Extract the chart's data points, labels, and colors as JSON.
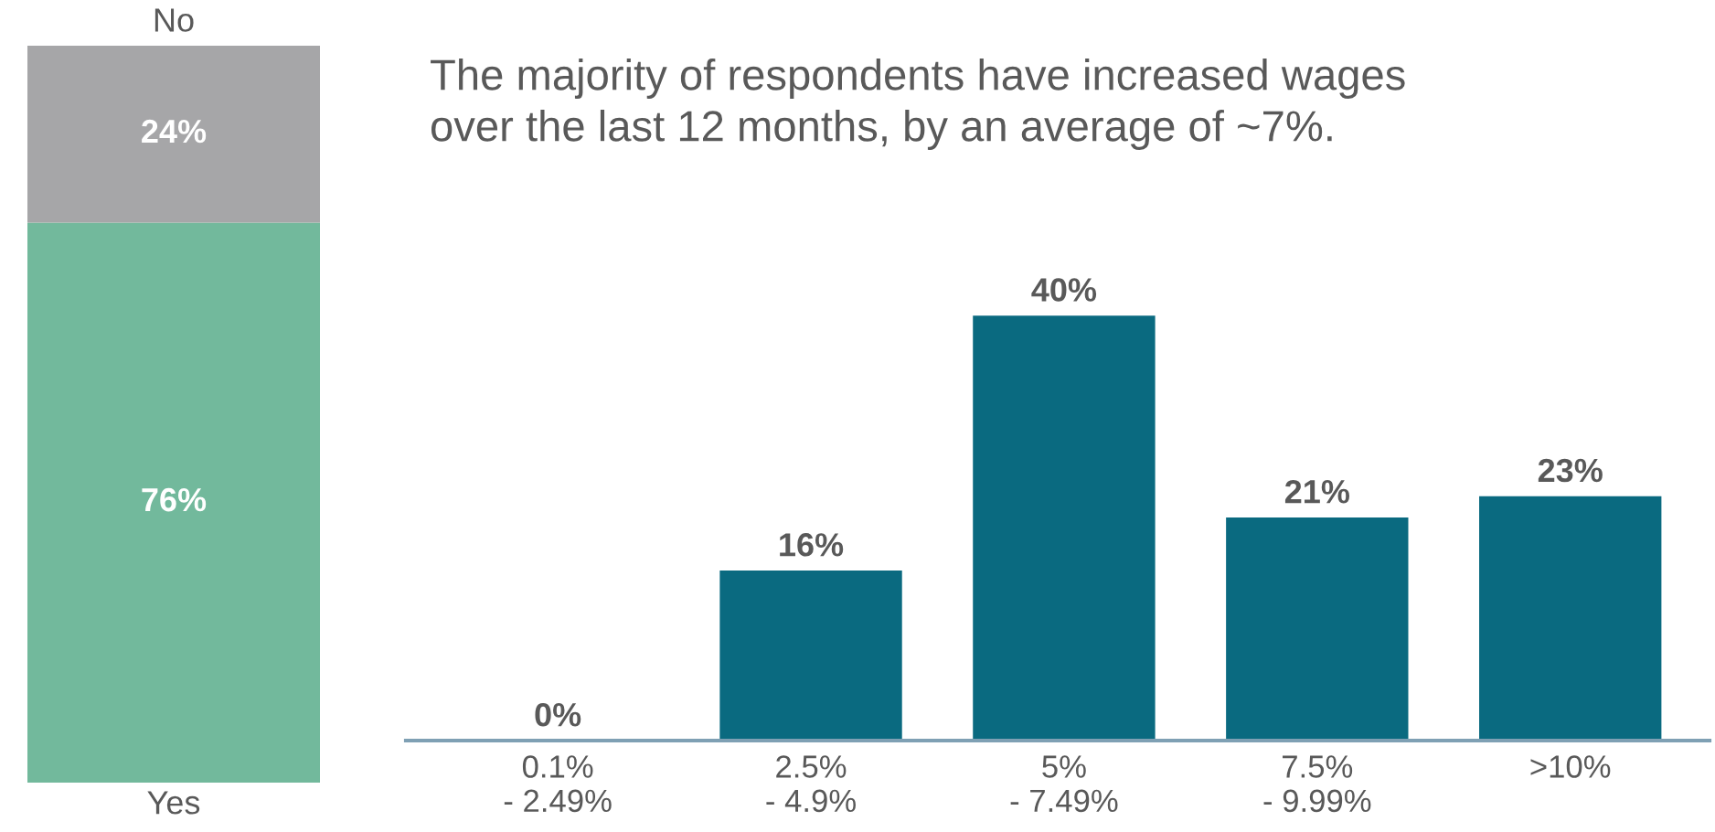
{
  "chart_data": [
    {
      "type": "bar",
      "stacked": true,
      "categories": [
        null
      ],
      "ylim": [
        0,
        100
      ],
      "tick_labels": false,
      "grid": false,
      "legend": false,
      "series": [
        {
          "name": "Yes",
          "color": "#72b99c",
          "values": [
            76
          ],
          "value_labels": [
            "76%"
          ]
        },
        {
          "name": "No",
          "color": "#a6a6a8",
          "values": [
            24
          ],
          "value_labels": [
            "24%"
          ]
        }
      ]
    },
    {
      "type": "bar",
      "title": "The majority of respondents have increased wages over the last 12 months, by an average of ~7%.",
      "categories": [
        "0.1%\n- 2.49%",
        "2.5%\n- 4.9%",
        "5%\n- 7.49%",
        "7.5%\n- 9.99%",
        ">10%"
      ],
      "values": [
        0,
        16,
        40,
        21,
        23
      ],
      "value_labels": [
        "0%",
        "16%",
        "40%",
        "21%",
        "23%"
      ],
      "color": "#0a6a80",
      "tick_labels": "x",
      "grid": false,
      "legend": false
    }
  ]
}
